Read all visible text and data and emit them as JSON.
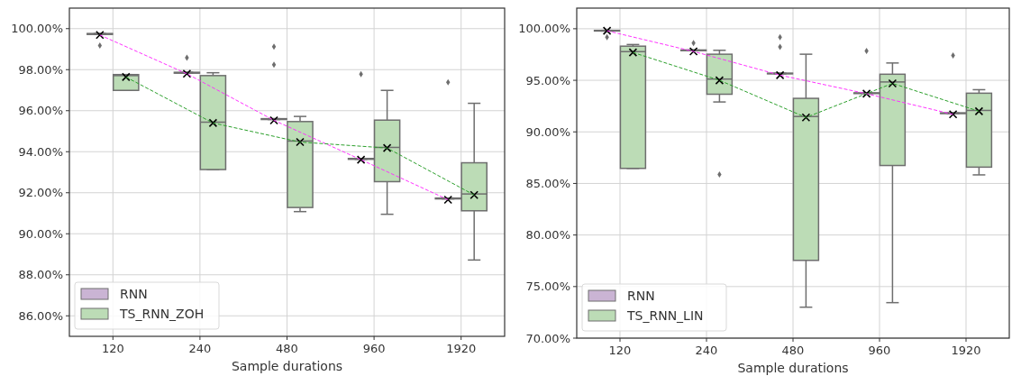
{
  "chart_data": [
    {
      "type": "box",
      "xlabel": "Sample durations",
      "categories": [
        "120",
        "240",
        "480",
        "960",
        "1920"
      ],
      "ylim": [
        85,
        101
      ],
      "yticks": [
        {
          "value": 86,
          "label": "86.00%"
        },
        {
          "value": 88,
          "label": "88.00%"
        },
        {
          "value": 90,
          "label": "90.00%"
        },
        {
          "value": 92,
          "label": "92.00%"
        },
        {
          "value": 94,
          "label": "94.00%"
        },
        {
          "value": 96,
          "label": "96.00%"
        },
        {
          "value": 98,
          "label": "98.00%"
        },
        {
          "value": 100,
          "label": "100.00%"
        }
      ],
      "grid": true,
      "legend": "bottom left",
      "series": [
        {
          "name": "RNN",
          "color": "#cab4d4",
          "boxes": [
            {
              "low": 99.72,
              "q1": 99.72,
              "median": 99.74,
              "q3": 99.76,
              "high": 99.76,
              "outliers": [
                99.18
              ]
            },
            {
              "low": 97.83,
              "q1": 97.83,
              "median": 97.85,
              "q3": 97.87,
              "high": 97.87,
              "outliers": [
                98.58
              ]
            },
            {
              "low": 95.57,
              "q1": 95.57,
              "median": 95.59,
              "q3": 95.61,
              "high": 95.61,
              "outliers": [
                99.12,
                98.24
              ]
            },
            {
              "low": 93.63,
              "q1": 93.63,
              "median": 93.65,
              "q3": 93.67,
              "high": 93.67,
              "outliers": [
                97.78
              ]
            },
            {
              "low": 91.7,
              "q1": 91.7,
              "median": 91.72,
              "q3": 91.74,
              "high": 91.74,
              "outliers": [
                97.39
              ]
            }
          ]
        },
        {
          "name": "TS_RNN_ZOH",
          "color": "#bcdcb6",
          "boxes": [
            {
              "low": 96.99,
              "q1": 96.99,
              "median": 97.71,
              "q3": 97.76,
              "high": 97.76
            },
            {
              "low": 93.13,
              "q1": 93.13,
              "median": 95.44,
              "q3": 97.71,
              "high": 97.85
            },
            {
              "low": 91.08,
              "q1": 91.28,
              "median": 94.52,
              "q3": 95.47,
              "high": 95.72
            },
            {
              "low": 90.95,
              "q1": 92.54,
              "median": 94.21,
              "q3": 95.54,
              "high": 96.99
            },
            {
              "low": 88.72,
              "q1": 91.12,
              "median": 91.94,
              "q3": 93.46,
              "high": 96.36
            }
          ]
        },
        {
          "type": "line",
          "color": "#ff33ff",
          "line_style": "dashed",
          "marker": "cross",
          "values": [
            99.69,
            97.8,
            95.53,
            93.61,
            91.66
          ]
        },
        {
          "type": "line",
          "color": "#2ca02c",
          "line_style": "dashed",
          "marker": "cross",
          "values": [
            97.64,
            95.4,
            94.47,
            94.18,
            91.89
          ]
        }
      ]
    },
    {
      "type": "box",
      "xlabel": "Sample durations",
      "categories": [
        "120",
        "240",
        "480",
        "960",
        "1920"
      ],
      "ylim": [
        70,
        102
      ],
      "yticks": [
        {
          "value": 70,
          "label": "70.00%"
        },
        {
          "value": 75,
          "label": "75.00%"
        },
        {
          "value": 80,
          "label": "80.00%"
        },
        {
          "value": 85,
          "label": "85.00%"
        },
        {
          "value": 90,
          "label": "90.00%"
        },
        {
          "value": 95,
          "label": "95.00%"
        },
        {
          "value": 100,
          "label": "100.00%"
        }
      ],
      "grid": true,
      "legend": "bottom left",
      "series": [
        {
          "name": "RNN",
          "color": "#cab4d4",
          "boxes": [
            {
              "low": 99.78,
              "q1": 99.78,
              "median": 99.81,
              "q3": 99.84,
              "high": 99.84,
              "outliers": [
                99.19
              ]
            },
            {
              "low": 97.88,
              "q1": 97.88,
              "median": 97.91,
              "q3": 97.94,
              "high": 97.94,
              "outliers": [
                98.62
              ]
            },
            {
              "low": 95.63,
              "q1": 95.63,
              "median": 95.66,
              "q3": 95.69,
              "high": 95.69,
              "outliers": [
                99.19,
                98.25
              ]
            },
            {
              "low": 93.72,
              "q1": 93.72,
              "median": 93.75,
              "q3": 93.78,
              "high": 93.78,
              "outliers": [
                97.85
              ]
            },
            {
              "low": 91.78,
              "q1": 91.78,
              "median": 91.81,
              "q3": 91.84,
              "high": 91.84,
              "outliers": [
                97.41
              ]
            }
          ]
        },
        {
          "name": "TS_RNN_LIN",
          "color": "#bcdcb6",
          "boxes": [
            {
              "low": 86.46,
              "q1": 86.46,
              "median": 97.78,
              "q3": 98.31,
              "high": 98.47
            },
            {
              "low": 92.9,
              "q1": 93.65,
              "median": 95.12,
              "q3": 97.53,
              "high": 97.91,
              "outliers": [
                85.86
              ]
            },
            {
              "low": 73.0,
              "q1": 77.54,
              "median": 91.49,
              "q3": 93.25,
              "high": 97.53
            },
            {
              "low": 73.44,
              "q1": 86.74,
              "median": 94.84,
              "q3": 95.59,
              "high": 96.68
            },
            {
              "low": 85.83,
              "q1": 86.58,
              "median": 92.08,
              "q3": 93.75,
              "high": 94.09
            }
          ]
        },
        {
          "type": "line",
          "color": "#ff33ff",
          "line_style": "dashed",
          "marker": "cross",
          "values": [
            99.8,
            97.8,
            95.5,
            93.7,
            91.7
          ]
        },
        {
          "type": "line",
          "color": "#2ca02c",
          "line_style": "dashed",
          "marker": "cross",
          "values": [
            97.7,
            95.0,
            91.4,
            94.7,
            92.0
          ]
        }
      ]
    }
  ]
}
